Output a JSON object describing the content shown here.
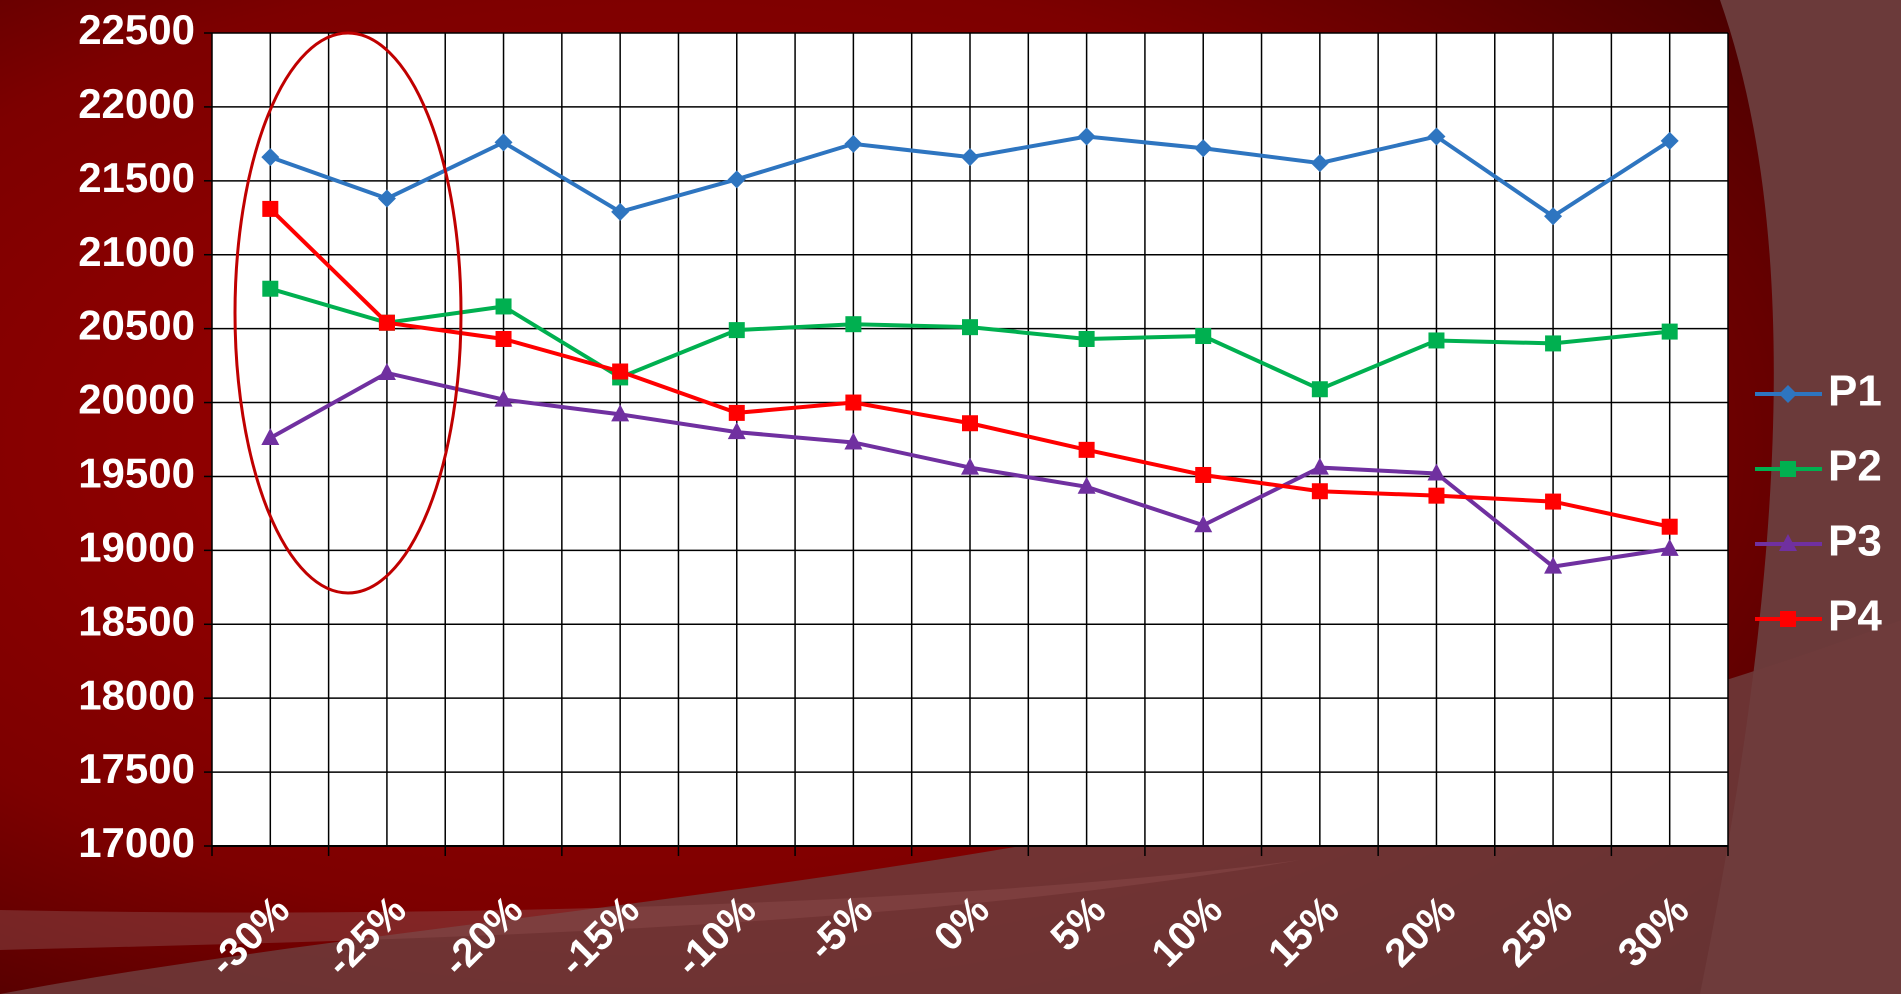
{
  "chart_data": {
    "type": "line",
    "categories": [
      "-30%",
      "-25%",
      "-20%",
      "-15%",
      "-10%",
      "-5%",
      "0%",
      "5%",
      "10%",
      "15%",
      "20%",
      "25%",
      "30%"
    ],
    "series": [
      {
        "name": "P1",
        "color": "#2e75c0",
        "marker": "diamond",
        "values": [
          21660,
          21380,
          21760,
          21290,
          21510,
          21750,
          21660,
          21800,
          21720,
          21620,
          21800,
          21260,
          21770
        ]
      },
      {
        "name": "P2",
        "color": "#00b050",
        "marker": "square",
        "values": [
          20770,
          20540,
          20650,
          20170,
          20490,
          20530,
          20510,
          20430,
          20450,
          20090,
          20420,
          20400,
          20480
        ]
      },
      {
        "name": "P3",
        "color": "#7030a0",
        "marker": "triangle",
        "values": [
          19760,
          20200,
          20020,
          19920,
          19800,
          19730,
          19560,
          19430,
          19170,
          19560,
          19520,
          18890,
          19010
        ]
      },
      {
        "name": "P4",
        "color": "#ff0000",
        "marker": "square",
        "values": [
          21310,
          20540,
          20430,
          20210,
          19930,
          20000,
          19860,
          19680,
          19510,
          19400,
          19370,
          19330,
          19160
        ]
      }
    ],
    "ylim": [
      17000,
      22500
    ],
    "yticks": [
      17000,
      17500,
      18000,
      18500,
      19000,
      19500,
      20000,
      20500,
      21000,
      21500,
      22000,
      22500
    ],
    "grid": true,
    "legend": "right"
  }
}
